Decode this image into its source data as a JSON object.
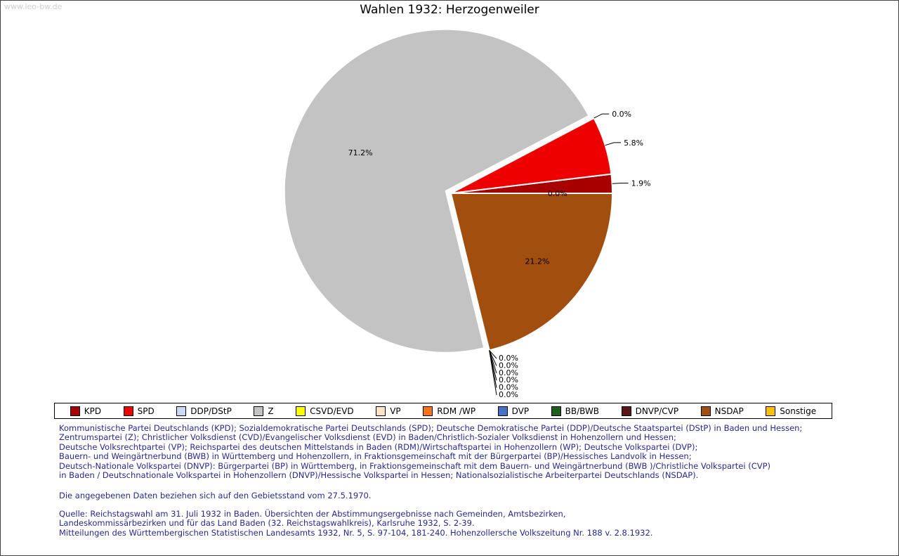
{
  "watermark": "www.leo-bw.de",
  "title": "Wahlen 1932: Herzogenweiler",
  "chart_data": {
    "type": "pie",
    "title": "Wahlen 1932: Herzogenweiler",
    "start_angle_deg": 0,
    "direction": "counterclockwise",
    "value_unit": "percent",
    "slices": [
      {
        "label": "KPD",
        "value": 1.9,
        "color": "#a80000",
        "label_pos": "right"
      },
      {
        "label": "SPD",
        "value": 5.8,
        "color": "#ee0000",
        "label_pos": "right"
      },
      {
        "label": "DDP/DStP",
        "value": 0.0,
        "color": "#ccd9f2",
        "label_pos": "right"
      },
      {
        "label": "Z",
        "value": 71.2,
        "color": "#c3c3c3",
        "label_pos": "inside",
        "label_r": 0.58,
        "explode": 8
      },
      {
        "label": "CSVD/EVD",
        "value": 0.0,
        "color": "#ffff00",
        "label_pos": "stack"
      },
      {
        "label": "VP",
        "value": 0.0,
        "color": "#fde3c8",
        "label_pos": "stack"
      },
      {
        "label": "RDM /WP",
        "value": 0.0,
        "color": "#f97316",
        "label_pos": "stack"
      },
      {
        "label": "DVP",
        "value": 0.0,
        "color": "#4472c4",
        "label_pos": "stack"
      },
      {
        "label": "BB/BWB",
        "value": 0.0,
        "color": "#205e20",
        "label_pos": "stack"
      },
      {
        "label": "DNVP/CVP",
        "value": 0.0,
        "color": "#5a1717",
        "label_pos": "stack"
      },
      {
        "label": "NSDAP",
        "value": 21.2,
        "color": "#a14e0e",
        "label_pos": "inside",
        "label_r": 0.68
      },
      {
        "label": "Sonstige",
        "value": 0.0,
        "color": "#ffc000",
        "label_pos": "inside",
        "label_r": 0.66
      }
    ]
  },
  "notes": {
    "parties_explanation": [
      "Kommunistische Partei Deutschlands (KPD); Sozialdemokratische Partei Deutschlands (SPD); Deutsche Demokratische Partei (DDP)/Deutsche Staatspartei (DStP) in Baden und Hessen;",
      "Zentrumspartei (Z); Christlicher Volksdienst (CVD)/Evangelischer Volksdienst (EVD) in Baden/Christlich-Sozialer Volksdienst in Hohenzollern und Hessen;",
      "Deutsche Volksrechtpartei (VP); Reichspartei des deutschen Mittelstands in Baden (RDM)/Wirtschaftspartei in Hohenzollern (WP); Deutsche Volkspartei (DVP);",
      "Bauern- und Weingärtnerbund (BWB) in Württemberg und Hohenzollern, in Fraktionsgemeinschaft mit der Bürgerpartei (BP)/Hessisches Landvolk in Hessen;",
      "Deutsch-Nationale Volkspartei (DNVP): Bürgerpartei (BP) in Württemberg, in Fraktionsgemeinschaft mit dem Bauern- und Weingärtnerbund (BWB )/Christliche Volkspartei (CVP)",
      "in Baden / Deutschnationale Volkspartei in Hohenzollern (DNVP)/Hessische Volkspartei in Hessen; Nationalsozialistische Arbeiterpartei Deutschlands (NSDAP)."
    ],
    "territorial_note": "Die angegebenen Daten beziehen sich auf den Gebietsstand vom 27.5.1970.",
    "source": [
      "Quelle: Reichstagswahl am 31. Juli 1932 in Baden. Übersichten der Abstimmungsergebnisse nach Gemeinden, Amtsbezirken,",
      "Landeskommissärbezirken und für das Land Baden (32. Reichstagswahlkreis), Karlsruhe 1932, S. 2-39.",
      "Mitteilungen des Württembergischen Statistischen Landesamts 1932, Nr. 5, S. 97-104, 181-240. Hohenzollersche Volkszeitung Nr. 188 v. 2.8.1932."
    ]
  }
}
